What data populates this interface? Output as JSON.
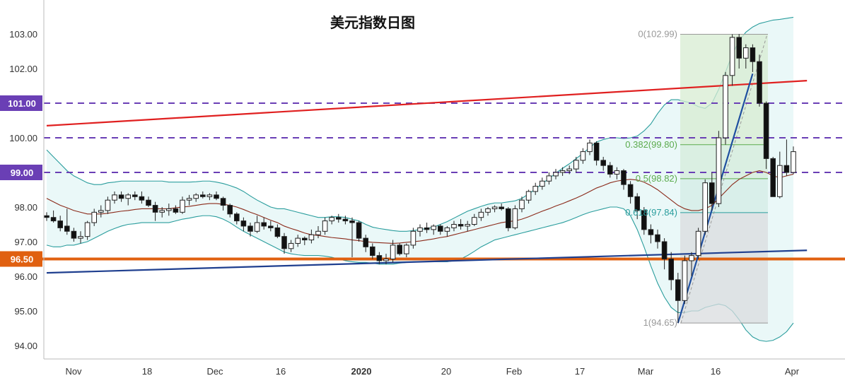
{
  "chart_data": {
    "type": "candlestick",
    "title": "美元指数日图",
    "xlabel": "",
    "ylabel": "",
    "ylim": [
      93.6,
      103.5
    ],
    "y_ticks": [
      "94.00",
      "95.00",
      "96.00",
      "97.00",
      "98.00",
      "99.00",
      "100.00",
      "101.00",
      "102.00",
      "103.00"
    ],
    "x_ticks": [
      {
        "label": "Nov",
        "bold": false
      },
      {
        "label": "18",
        "bold": false
      },
      {
        "label": "Dec",
        "bold": false
      },
      {
        "label": "16",
        "bold": false
      },
      {
        "label": "2020",
        "bold": true
      },
      {
        "label": "20",
        "bold": false
      },
      {
        "label": "Feb",
        "bold": false
      },
      {
        "label": "17",
        "bold": false
      },
      {
        "label": "Mar",
        "bold": false
      },
      {
        "label": "16",
        "bold": false
      },
      {
        "label": "Apr",
        "bold": false
      }
    ],
    "badges": [
      {
        "label": "101.00",
        "value": 101.0,
        "color": "#6a3fb5"
      },
      {
        "label": "99.00",
        "value": 99.0,
        "color": "#6a3fb5"
      },
      {
        "label": "96.50",
        "value": 96.5,
        "color": "#e06010"
      }
    ],
    "dashed_levels": [
      101.0,
      100.0,
      99.0
    ],
    "support_level": 96.5,
    "fibonacci": {
      "high": 102.99,
      "low": 94.65,
      "levels": [
        {
          "label": "0(102.99)",
          "value": 102.99
        },
        {
          "label": "0.382(99.80)",
          "value": 99.8
        },
        {
          "label": "0.5(98.82)",
          "value": 98.82
        },
        {
          "label": "0.618(97.84)",
          "value": 97.84
        },
        {
          "label": "1(94.65)",
          "value": 94.65
        }
      ]
    },
    "trendlines": [
      {
        "name": "resistance",
        "color": "#e02020",
        "from": [
          0,
          100.35
        ],
        "to": [
          112,
          101.65
        ]
      },
      {
        "name": "support",
        "color": "#1f3f8f",
        "from": [
          0,
          96.1
        ],
        "to": [
          112,
          96.75
        ]
      }
    ],
    "candles": [
      [
        97.75,
        97.85,
        97.6,
        97.7
      ],
      [
        97.7,
        97.9,
        97.55,
        97.6
      ],
      [
        97.6,
        97.75,
        97.3,
        97.4
      ],
      [
        97.45,
        97.95,
        97.2,
        97.3
      ],
      [
        97.3,
        97.4,
        97.0,
        97.1
      ],
      [
        97.1,
        97.3,
        96.95,
        97.15
      ],
      [
        97.15,
        97.6,
        97.05,
        97.55
      ],
      [
        97.55,
        97.95,
        97.45,
        97.85
      ],
      [
        97.85,
        98.05,
        97.7,
        97.9
      ],
      [
        97.9,
        98.3,
        97.8,
        98.2
      ],
      [
        98.2,
        98.45,
        98.1,
        98.35
      ],
      [
        98.35,
        98.45,
        98.15,
        98.25
      ],
      [
        98.25,
        98.4,
        98.05,
        98.35
      ],
      [
        98.35,
        98.45,
        98.2,
        98.3
      ],
      [
        98.3,
        98.45,
        98.1,
        98.2
      ],
      [
        98.2,
        98.3,
        98.0,
        98.05
      ],
      [
        98.05,
        98.15,
        97.6,
        97.85
      ],
      [
        97.85,
        98.0,
        97.7,
        97.9
      ],
      [
        97.9,
        98.1,
        97.75,
        97.95
      ],
      [
        97.95,
        98.05,
        97.8,
        97.85
      ],
      [
        97.85,
        98.3,
        97.8,
        98.2
      ],
      [
        98.2,
        98.35,
        98.05,
        98.25
      ],
      [
        98.25,
        98.4,
        98.15,
        98.35
      ],
      [
        98.35,
        98.45,
        98.25,
        98.3
      ],
      [
        98.3,
        98.4,
        98.2,
        98.35
      ],
      [
        98.35,
        98.45,
        98.2,
        98.25
      ],
      [
        98.25,
        98.3,
        97.9,
        98.05
      ],
      [
        98.05,
        98.1,
        97.7,
        97.8
      ],
      [
        97.8,
        97.85,
        97.5,
        97.6
      ],
      [
        97.6,
        97.7,
        97.3,
        97.45
      ],
      [
        97.45,
        97.55,
        97.15,
        97.3
      ],
      [
        97.3,
        97.75,
        97.25,
        97.55
      ],
      [
        97.55,
        97.7,
        97.35,
        97.45
      ],
      [
        97.45,
        97.6,
        97.3,
        97.4
      ],
      [
        97.4,
        97.5,
        97.1,
        97.15
      ],
      [
        97.15,
        97.25,
        96.65,
        96.8
      ],
      [
        96.8,
        97.05,
        96.7,
        96.95
      ],
      [
        96.95,
        97.2,
        96.85,
        97.1
      ],
      [
        97.1,
        97.15,
        96.9,
        97.05
      ],
      [
        97.05,
        97.35,
        96.95,
        97.2
      ],
      [
        97.2,
        97.45,
        97.1,
        97.3
      ],
      [
        97.3,
        97.7,
        97.2,
        97.6
      ],
      [
        97.6,
        97.75,
        97.5,
        97.7
      ],
      [
        97.7,
        97.8,
        97.55,
        97.65
      ],
      [
        97.65,
        97.75,
        97.5,
        97.6
      ],
      [
        97.6,
        97.7,
        96.55,
        97.55
      ],
      [
        97.55,
        97.6,
        97.0,
        97.1
      ],
      [
        97.1,
        97.2,
        96.7,
        96.85
      ],
      [
        96.85,
        96.95,
        96.5,
        96.6
      ],
      [
        96.6,
        96.7,
        96.35,
        96.45
      ],
      [
        96.45,
        96.65,
        96.35,
        96.5
      ],
      [
        96.5,
        97.05,
        96.4,
        96.9
      ],
      [
        96.9,
        96.95,
        96.6,
        96.65
      ],
      [
        96.65,
        96.95,
        96.55,
        96.9
      ],
      [
        96.9,
        97.4,
        96.8,
        97.3
      ],
      [
        97.3,
        97.5,
        97.15,
        97.4
      ],
      [
        97.4,
        97.55,
        97.25,
        97.35
      ],
      [
        97.35,
        97.5,
        97.2,
        97.45
      ],
      [
        97.45,
        97.5,
        97.2,
        97.3
      ],
      [
        97.3,
        97.45,
        97.15,
        97.4
      ],
      [
        97.4,
        97.6,
        97.3,
        97.5
      ],
      [
        97.5,
        97.65,
        97.35,
        97.45
      ],
      [
        97.45,
        97.6,
        97.3,
        97.5
      ],
      [
        97.5,
        97.8,
        97.45,
        97.7
      ],
      [
        97.7,
        97.95,
        97.6,
        97.85
      ],
      [
        97.85,
        98.0,
        97.75,
        97.95
      ],
      [
        97.95,
        98.05,
        97.85,
        98.0
      ],
      [
        98.0,
        98.1,
        97.9,
        97.95
      ],
      [
        97.95,
        98.0,
        97.3,
        97.4
      ],
      [
        97.4,
        98.05,
        97.35,
        97.95
      ],
      [
        97.95,
        98.3,
        97.85,
        98.2
      ],
      [
        98.2,
        98.5,
        98.1,
        98.45
      ],
      [
        98.45,
        98.7,
        98.35,
        98.6
      ],
      [
        98.6,
        98.85,
        98.5,
        98.75
      ],
      [
        98.75,
        99.0,
        98.65,
        98.9
      ],
      [
        98.9,
        99.1,
        98.8,
        99.0
      ],
      [
        99.0,
        99.15,
        98.9,
        99.05
      ],
      [
        99.05,
        99.2,
        98.95,
        99.1
      ],
      [
        99.1,
        99.45,
        99.0,
        99.35
      ],
      [
        99.35,
        99.7,
        99.25,
        99.6
      ],
      [
        99.6,
        99.95,
        99.5,
        99.85
      ],
      [
        99.85,
        99.9,
        99.2,
        99.35
      ],
      [
        99.35,
        99.45,
        99.05,
        99.2
      ],
      [
        99.2,
        99.3,
        98.85,
        98.95
      ],
      [
        98.95,
        99.15,
        98.8,
        99.05
      ],
      [
        99.05,
        99.1,
        98.5,
        98.65
      ],
      [
        98.65,
        98.75,
        98.1,
        98.3
      ],
      [
        98.3,
        98.4,
        97.65,
        97.9
      ],
      [
        97.9,
        98.0,
        97.2,
        97.35
      ],
      [
        97.35,
        97.5,
        96.95,
        97.2
      ],
      [
        97.2,
        97.35,
        96.8,
        97.0
      ],
      [
        97.0,
        97.1,
        96.2,
        96.5
      ],
      [
        96.5,
        96.7,
        95.6,
        95.9
      ],
      [
        95.9,
        96.1,
        94.65,
        95.3
      ],
      [
        95.3,
        96.6,
        95.2,
        96.45
      ],
      [
        96.45,
        96.7,
        96.0,
        96.6
      ],
      [
        96.6,
        97.4,
        96.5,
        97.3
      ],
      [
        97.3,
        98.8,
        97.2,
        98.7
      ],
      [
        98.7,
        99.0,
        97.9,
        98.1
      ],
      [
        98.1,
        100.2,
        98.0,
        100.0
      ],
      [
        100.0,
        101.9,
        99.8,
        101.8
      ],
      [
        101.8,
        102.99,
        101.5,
        102.9
      ],
      [
        102.9,
        103.0,
        102.0,
        102.3
      ],
      [
        102.3,
        102.7,
        102.0,
        102.6
      ],
      [
        102.6,
        102.7,
        101.9,
        102.2
      ],
      [
        102.2,
        102.4,
        100.9,
        101.0
      ],
      [
        101.0,
        101.05,
        99.1,
        99.4
      ],
      [
        99.4,
        99.45,
        98.3,
        98.3
      ],
      [
        98.3,
        99.6,
        98.25,
        99.2
      ],
      [
        99.2,
        99.95,
        98.9,
        99.0
      ],
      [
        99.0,
        99.75,
        98.95,
        99.6
      ]
    ],
    "ma20": [
      98.25,
      98.15,
      98.05,
      97.98,
      97.9,
      97.85,
      97.8,
      97.8,
      97.8,
      97.82,
      97.85,
      97.88,
      97.9,
      97.93,
      97.95,
      97.95,
      97.95,
      97.95,
      97.95,
      97.98,
      98.0,
      98.02,
      98.05,
      98.08,
      98.1,
      98.1,
      98.08,
      98.05,
      98.0,
      97.93,
      97.85,
      97.78,
      97.7,
      97.62,
      97.55,
      97.45,
      97.38,
      97.32,
      97.25,
      97.2,
      97.18,
      97.15,
      97.12,
      97.1,
      97.08,
      97.05,
      97.03,
      97.0,
      96.98,
      96.97,
      96.96,
      96.95,
      96.96,
      96.98,
      97.0,
      97.02,
      97.05,
      97.08,
      97.12,
      97.15,
      97.2,
      97.25,
      97.3,
      97.35,
      97.4,
      97.45,
      97.5,
      97.55,
      97.58,
      97.6,
      97.65,
      97.72,
      97.8,
      97.88,
      97.95,
      98.03,
      98.1,
      98.18,
      98.26,
      98.35,
      98.45,
      98.55,
      98.62,
      98.7,
      98.75,
      98.78,
      98.8,
      98.78,
      98.72,
      98.62,
      98.5,
      98.35,
      98.2,
      98.05,
      97.95,
      97.9,
      97.9,
      97.95,
      98.05,
      98.25,
      98.45,
      98.65,
      98.8,
      98.9,
      99.0,
      99.05,
      99.0,
      98.9,
      98.85,
      98.9,
      98.95
    ],
    "bb_upper": [
      99.65,
      99.45,
      99.25,
      99.05,
      98.9,
      98.8,
      98.7,
      98.65,
      98.65,
      98.7,
      98.72,
      98.75,
      98.75,
      98.75,
      98.75,
      98.75,
      98.75,
      98.75,
      98.72,
      98.72,
      98.72,
      98.72,
      98.73,
      98.75,
      98.75,
      98.72,
      98.68,
      98.62,
      98.55,
      98.45,
      98.32,
      98.2,
      98.1,
      98.0,
      97.95,
      97.95,
      97.9,
      97.85,
      97.8,
      97.75,
      97.7,
      97.7,
      97.72,
      97.72,
      97.7,
      97.65,
      97.6,
      97.5,
      97.42,
      97.38,
      97.35,
      97.32,
      97.3,
      97.3,
      97.32,
      97.35,
      97.38,
      97.42,
      97.5,
      97.58,
      97.68,
      97.78,
      97.88,
      97.95,
      98.02,
      98.08,
      98.12,
      98.12,
      98.15,
      98.18,
      98.25,
      98.38,
      98.52,
      98.68,
      98.82,
      98.98,
      99.12,
      99.25,
      99.4,
      99.55,
      99.72,
      99.88,
      99.95,
      100.0,
      100.0,
      99.98,
      100.0,
      100.05,
      100.2,
      100.4,
      100.7,
      100.95,
      101.1,
      101.1,
      101.05,
      101.0,
      100.9,
      100.85,
      101.0,
      101.4,
      101.9,
      102.4,
      102.8,
      103.05,
      103.2,
      103.3,
      103.35,
      103.4,
      103.42,
      103.45,
      103.48
    ],
    "bb_lower": [
      96.9,
      96.85,
      96.85,
      96.9,
      96.9,
      96.95,
      97.0,
      97.1,
      97.2,
      97.3,
      97.38,
      97.45,
      97.5,
      97.52,
      97.55,
      97.55,
      97.55,
      97.55,
      97.55,
      97.6,
      97.65,
      97.68,
      97.72,
      97.75,
      97.75,
      97.72,
      97.65,
      97.55,
      97.42,
      97.3,
      97.2,
      97.1,
      97.0,
      96.9,
      96.8,
      96.7,
      96.65,
      96.62,
      96.6,
      96.6,
      96.6,
      96.58,
      96.55,
      96.5,
      96.45,
      96.42,
      96.4,
      96.4,
      96.38,
      96.35,
      96.35,
      96.35,
      96.38,
      96.4,
      96.42,
      96.42,
      96.42,
      96.42,
      96.42,
      96.42,
      96.45,
      96.5,
      96.6,
      96.72,
      96.85,
      96.95,
      97.05,
      97.1,
      97.15,
      97.2,
      97.25,
      97.3,
      97.35,
      97.4,
      97.45,
      97.5,
      97.55,
      97.62,
      97.7,
      97.78,
      97.85,
      97.9,
      97.95,
      98.0,
      98.0,
      97.95,
      97.75,
      97.35,
      96.85,
      96.3,
      95.8,
      95.4,
      95.1,
      94.95,
      94.95,
      95.0,
      95.0,
      95.1,
      95.15,
      95.2,
      95.15,
      95.0,
      94.75,
      94.45,
      94.25,
      94.15,
      94.12,
      94.15,
      94.25,
      94.4,
      94.65
    ]
  }
}
